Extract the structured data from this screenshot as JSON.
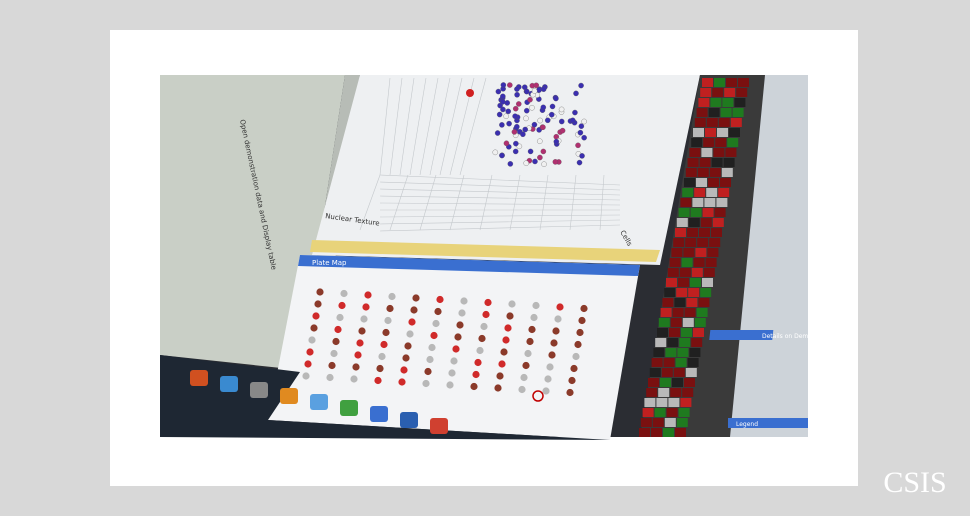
{
  "logo": "CSIS",
  "screen": {
    "plate_map_title": "Plate Map",
    "axis_label_left": "Nuclear Texture",
    "axis_label_right": "Cells",
    "details_panel": "Details on Demand",
    "legend_panel": "Legend",
    "left_link": "Open demonstration data and Display table"
  }
}
